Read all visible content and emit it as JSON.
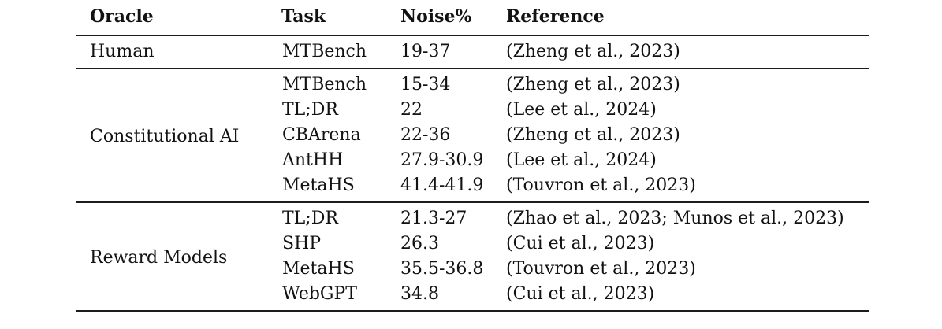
{
  "table": {
    "columns": [
      "Oracle",
      "Task",
      "Noise%",
      "Reference"
    ],
    "groups": [
      {
        "oracle": "Human",
        "rows": [
          {
            "task": "MTBench",
            "noise": "19-37",
            "reference": "(Zheng et al., 2023)"
          }
        ]
      },
      {
        "oracle": "Constitutional AI",
        "rows": [
          {
            "task": "MTBench",
            "noise": "15-34",
            "reference": "(Zheng et al., 2023)"
          },
          {
            "task": "TL;DR",
            "noise": "22",
            "reference": "(Lee et al., 2024)"
          },
          {
            "task": "CBArena",
            "noise": "22-36",
            "reference": "(Zheng et al., 2023)"
          },
          {
            "task": "AntHH",
            "noise": "27.9-30.9",
            "reference": "(Lee et al., 2024)"
          },
          {
            "task": "MetaHS",
            "noise": "41.4-41.9",
            "reference": "(Touvron et al., 2023)"
          }
        ]
      },
      {
        "oracle": "Reward Models",
        "rows": [
          {
            "task": "TL;DR",
            "noise": "21.3-27",
            "reference": "(Zhao et al., 2023; Munos et al., 2023)"
          },
          {
            "task": "SHP",
            "noise": "26.3",
            "reference": "(Cui et al., 2023)"
          },
          {
            "task": "MetaHS",
            "noise": "35.5-36.8",
            "reference": "(Touvron et al., 2023)"
          },
          {
            "task": "WebGPT",
            "noise": "34.8",
            "reference": "(Cui et al., 2023)"
          }
        ]
      }
    ],
    "colors": {
      "text": "#121212",
      "rule": "#1c1c1c",
      "background": "#ffffff"
    }
  }
}
